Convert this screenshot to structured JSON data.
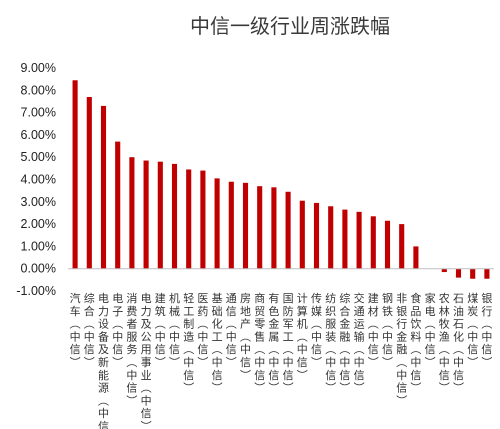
{
  "chart_data": {
    "type": "bar",
    "title": "中信一级行业周涨跌幅",
    "xlabel": "",
    "ylabel": "",
    "ylim": [
      -1,
      9
    ],
    "yticks": [
      "9.00%",
      "8.00%",
      "7.00%",
      "6.00%",
      "5.00%",
      "4.00%",
      "3.00%",
      "2.00%",
      "1.00%",
      "0.00%",
      "-1.00%"
    ],
    "grid": false,
    "legend": "none",
    "bar_color": "#c00000",
    "categories": [
      "汽车(中信)",
      "综合(中信)",
      "电力设备及新能源(中信)",
      "电子(中信)",
      "消费者服务(中信)",
      "电力及公用事业(中信)",
      "建筑(中信)",
      "机械(中信)",
      "轻工制造(中信)",
      "医药(中信)",
      "基础化工(中信)",
      "通信(中信)",
      "房地产(中信)",
      "商贸零售(中信)",
      "有色金属(中信)",
      "国防军工(中信)",
      "计算机(中信)",
      "传媒(中信)",
      "纺织服装(中信)",
      "综合金融(中信)",
      "交通运输(中信)",
      "建材(中信)",
      "钢铁(中信)",
      "非银行金融(中信)",
      "食品饮料(中信)",
      "家电(中信)",
      "农林牧渔(中信)",
      "石油石化(中信)",
      "煤炭(中信)",
      "银行(中信)"
    ],
    "values": [
      8.45,
      7.7,
      7.3,
      5.7,
      5.0,
      4.85,
      4.8,
      4.7,
      4.45,
      4.4,
      4.05,
      3.9,
      3.85,
      3.7,
      3.65,
      3.45,
      3.05,
      2.95,
      2.8,
      2.65,
      2.55,
      2.35,
      2.15,
      2.0,
      1.0,
      0.0,
      -0.15,
      -0.4,
      -0.45,
      -0.45
    ]
  }
}
